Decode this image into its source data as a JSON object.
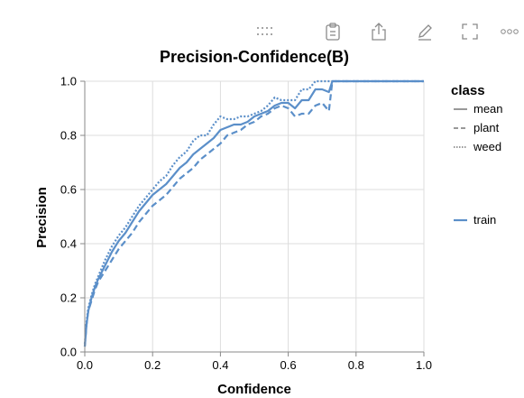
{
  "toolbar": {
    "icons": [
      "drag-handle-icon",
      "clipboard-icon",
      "share-icon",
      "edit-icon",
      "fullscreen-icon",
      "more-icon"
    ],
    "icon_color": "#8a8a8a"
  },
  "chart_data": {
    "type": "line",
    "title": "Precision-Confidence(B)",
    "xlabel": "Confidence",
    "ylabel": "Precision",
    "xlim": [
      0.0,
      1.0
    ],
    "ylim": [
      0.0,
      1.0
    ],
    "x_ticks": [
      "0.0",
      "0.2",
      "0.4",
      "0.6",
      "0.8",
      "1.0"
    ],
    "y_ticks": [
      "0.0",
      "0.2",
      "0.4",
      "0.6",
      "0.8",
      "1.0"
    ],
    "grid": true,
    "color": "#5b8fc9",
    "legend": {
      "position": "right",
      "stroke_dash": {
        "title": "class",
        "entries": [
          {
            "label": "mean",
            "dash": "solid"
          },
          {
            "label": "plant",
            "dash": "dashed"
          },
          {
            "label": "weed",
            "dash": "dotted"
          }
        ]
      },
      "color": {
        "entries": [
          {
            "label": "train",
            "color": "#5b8fc9"
          }
        ]
      }
    },
    "series": [
      {
        "name": "mean",
        "dash": "solid",
        "x": [
          0.0,
          0.005,
          0.01,
          0.02,
          0.03,
          0.04,
          0.06,
          0.08,
          0.1,
          0.12,
          0.14,
          0.16,
          0.18,
          0.2,
          0.22,
          0.24,
          0.26,
          0.28,
          0.3,
          0.32,
          0.34,
          0.36,
          0.38,
          0.4,
          0.42,
          0.44,
          0.46,
          0.48,
          0.5,
          0.52,
          0.54,
          0.56,
          0.58,
          0.6,
          0.62,
          0.64,
          0.66,
          0.68,
          0.7,
          0.72,
          0.73,
          1.0
        ],
        "y": [
          0.02,
          0.1,
          0.15,
          0.2,
          0.24,
          0.27,
          0.32,
          0.37,
          0.41,
          0.44,
          0.48,
          0.52,
          0.55,
          0.58,
          0.6,
          0.62,
          0.65,
          0.68,
          0.7,
          0.73,
          0.75,
          0.77,
          0.79,
          0.82,
          0.83,
          0.84,
          0.84,
          0.85,
          0.87,
          0.88,
          0.89,
          0.91,
          0.92,
          0.92,
          0.9,
          0.93,
          0.93,
          0.97,
          0.97,
          0.96,
          1.0,
          1.0
        ]
      },
      {
        "name": "plant",
        "dash": "dashed",
        "x": [
          0.0,
          0.005,
          0.01,
          0.02,
          0.03,
          0.04,
          0.06,
          0.08,
          0.1,
          0.12,
          0.14,
          0.16,
          0.18,
          0.2,
          0.22,
          0.24,
          0.26,
          0.28,
          0.3,
          0.32,
          0.34,
          0.36,
          0.38,
          0.4,
          0.42,
          0.44,
          0.46,
          0.48,
          0.5,
          0.52,
          0.54,
          0.56,
          0.58,
          0.6,
          0.62,
          0.64,
          0.66,
          0.68,
          0.7,
          0.72,
          0.73,
          1.0
        ],
        "y": [
          0.02,
          0.1,
          0.15,
          0.19,
          0.23,
          0.26,
          0.3,
          0.34,
          0.38,
          0.41,
          0.44,
          0.48,
          0.51,
          0.54,
          0.56,
          0.58,
          0.61,
          0.64,
          0.66,
          0.68,
          0.71,
          0.73,
          0.75,
          0.77,
          0.8,
          0.81,
          0.82,
          0.84,
          0.85,
          0.87,
          0.88,
          0.9,
          0.91,
          0.9,
          0.87,
          0.88,
          0.88,
          0.91,
          0.92,
          0.89,
          1.0,
          1.0
        ]
      },
      {
        "name": "weed",
        "dash": "dotted",
        "x": [
          0.0,
          0.005,
          0.01,
          0.02,
          0.03,
          0.04,
          0.06,
          0.08,
          0.1,
          0.12,
          0.14,
          0.16,
          0.18,
          0.2,
          0.22,
          0.24,
          0.26,
          0.28,
          0.3,
          0.32,
          0.34,
          0.36,
          0.38,
          0.4,
          0.42,
          0.44,
          0.46,
          0.48,
          0.5,
          0.52,
          0.54,
          0.56,
          0.58,
          0.6,
          0.62,
          0.64,
          0.66,
          0.68,
          0.7,
          0.72,
          0.73,
          1.0
        ],
        "y": [
          0.03,
          0.11,
          0.16,
          0.21,
          0.25,
          0.28,
          0.34,
          0.39,
          0.43,
          0.46,
          0.5,
          0.54,
          0.57,
          0.6,
          0.63,
          0.65,
          0.69,
          0.72,
          0.74,
          0.78,
          0.8,
          0.8,
          0.84,
          0.87,
          0.86,
          0.86,
          0.87,
          0.87,
          0.88,
          0.89,
          0.91,
          0.94,
          0.93,
          0.93,
          0.93,
          0.97,
          0.97,
          1.0,
          1.0,
          1.0,
          1.0,
          1.0
        ]
      }
    ]
  }
}
